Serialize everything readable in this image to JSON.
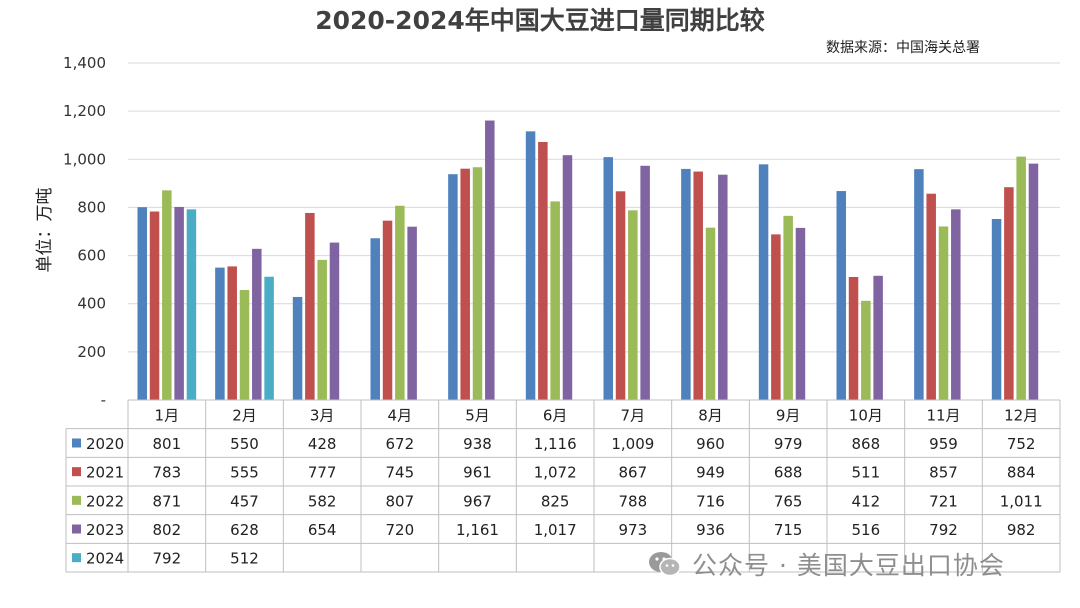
{
  "chart_data": {
    "type": "bar",
    "title": "2020-2024年中国大豆进口量同期比较",
    "source": "数据来源：中国海关总署",
    "ylabel": "单位：万吨",
    "ylim": [
      0,
      1400
    ],
    "yticks": [
      0,
      200,
      400,
      600,
      800,
      1000,
      1200,
      1400
    ],
    "ytick_labels": [
      "-",
      "200",
      "400",
      "600",
      "800",
      "1,000",
      "1,200",
      "1,400"
    ],
    "grid": true,
    "legend": "data-table-left",
    "categories": [
      "1月",
      "2月",
      "3月",
      "4月",
      "5月",
      "6月",
      "7月",
      "8月",
      "9月",
      "10月",
      "11月",
      "12月"
    ],
    "series": [
      {
        "name": "2020",
        "color": "#4F81BD",
        "values": [
          801,
          550,
          428,
          672,
          938,
          1116,
          1009,
          960,
          979,
          868,
          959,
          752
        ],
        "labels": [
          "801",
          "550",
          "428",
          "672",
          "938",
          "1,116",
          "1,009",
          "960",
          "979",
          "868",
          "959",
          "752"
        ]
      },
      {
        "name": "2021",
        "color": "#C0504D",
        "values": [
          783,
          555,
          777,
          745,
          961,
          1072,
          867,
          949,
          688,
          511,
          857,
          884
        ],
        "labels": [
          "783",
          "555",
          "777",
          "745",
          "961",
          "1,072",
          "867",
          "949",
          "688",
          "511",
          "857",
          "884"
        ]
      },
      {
        "name": "2022",
        "color": "#9BBB59",
        "values": [
          871,
          457,
          582,
          807,
          967,
          825,
          788,
          716,
          765,
          412,
          721,
          1011
        ],
        "labels": [
          "871",
          "457",
          "582",
          "807",
          "967",
          "825",
          "788",
          "716",
          "765",
          "412",
          "721",
          "1,011"
        ]
      },
      {
        "name": "2023",
        "color": "#8064A2",
        "values": [
          802,
          628,
          654,
          720,
          1161,
          1017,
          973,
          936,
          715,
          516,
          792,
          982
        ],
        "labels": [
          "802",
          "628",
          "654",
          "720",
          "1,161",
          "1,017",
          "973",
          "936",
          "715",
          "516",
          "792",
          "982"
        ]
      },
      {
        "name": "2024",
        "color": "#4BACC6",
        "values": [
          792,
          512,
          null,
          null,
          null,
          null,
          null,
          null,
          null,
          null,
          null,
          null
        ],
        "labels": [
          "792",
          "512",
          "",
          "",
          "",
          "",
          "",
          "",
          "",
          "",
          "",
          ""
        ]
      }
    ]
  },
  "watermark": {
    "text": "公众号 · 美国大豆出口协会",
    "icon": "wechat-icon"
  }
}
